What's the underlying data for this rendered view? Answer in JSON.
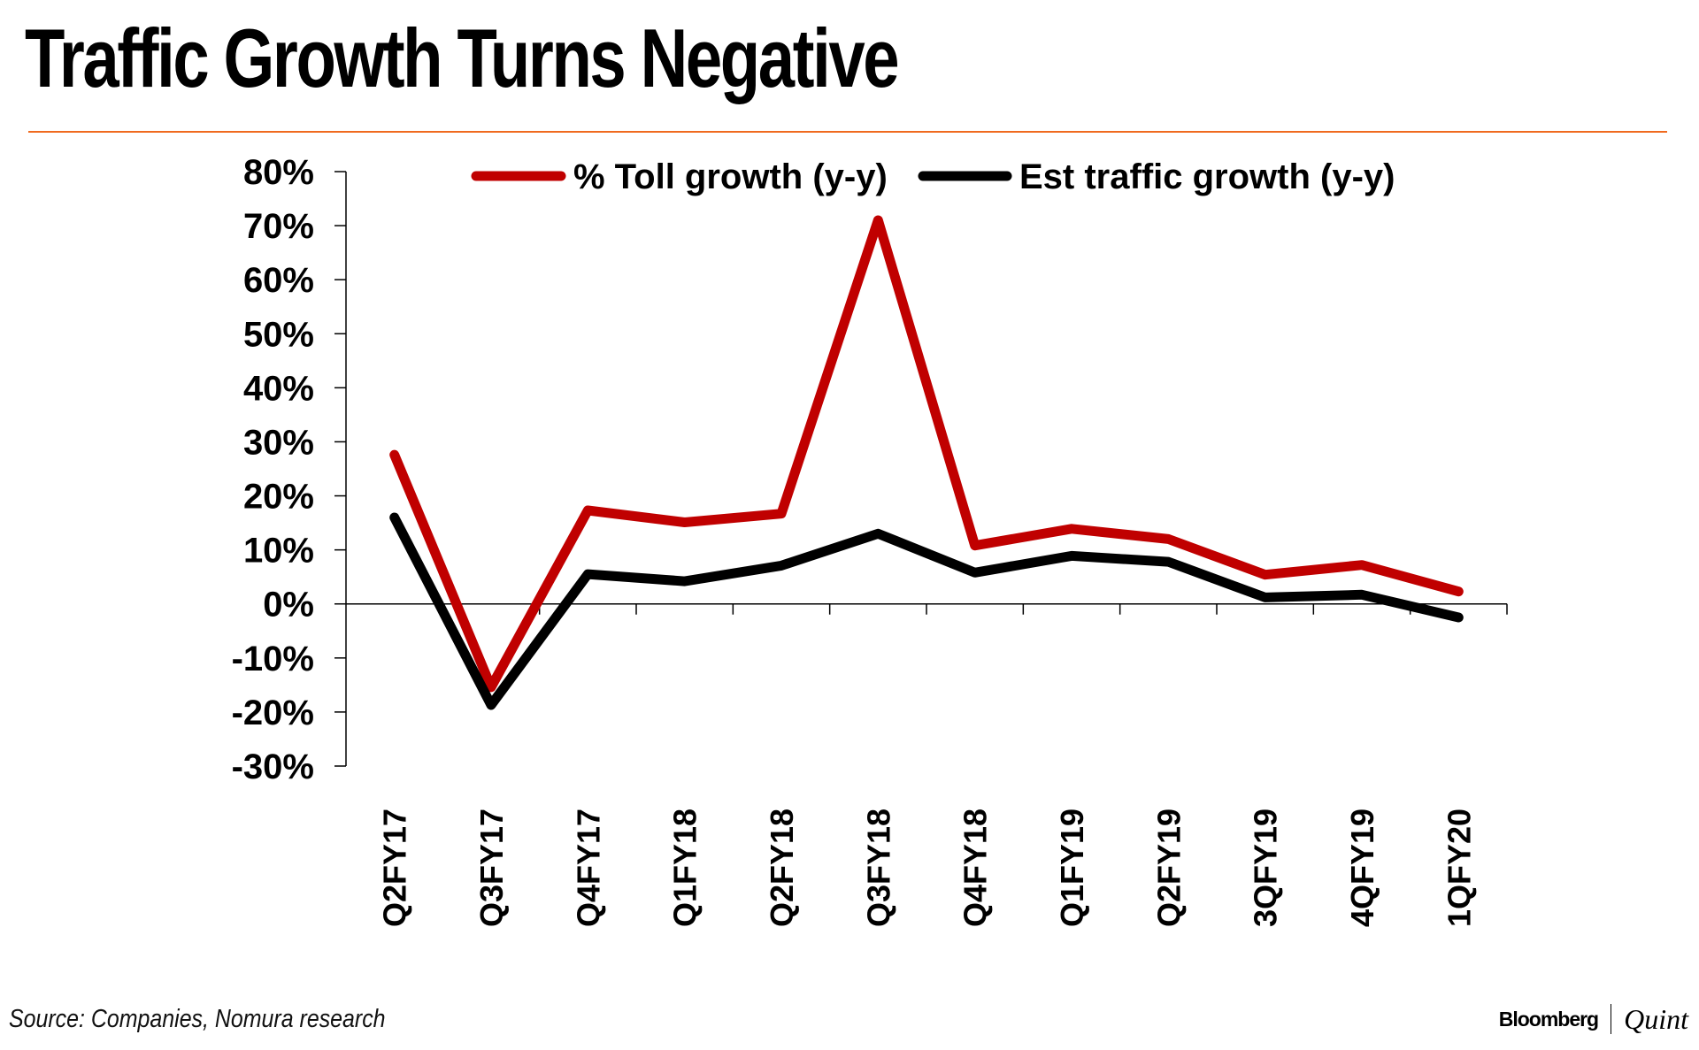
{
  "header": {
    "title": "Traffic Growth Turns Negative"
  },
  "footer": {
    "source": "Source: Companies, Nomura research",
    "brand_primary": "Bloomberg",
    "brand_secondary": "Quint"
  },
  "colors": {
    "accent_rule": "#F06A1E",
    "toll_series": "#C00000",
    "traffic_series": "#000000"
  },
  "chart_data": {
    "type": "line",
    "title": "Traffic Growth Turns Negative",
    "xlabel": "",
    "ylabel": "",
    "categories": [
      "Q2FY17",
      "Q3FY17",
      "Q4FY17",
      "Q1FY18",
      "Q2FY18",
      "Q3FY18",
      "Q4FY18",
      "Q1FY19",
      "Q2FY19",
      "3QFY19",
      "4QFY19",
      "1QFY20"
    ],
    "series": [
      {
        "name": "% Toll growth (y-y)",
        "color": "#C00000",
        "values": [
          27.6,
          -15.4,
          17.3,
          15.1,
          16.7,
          71.0,
          10.8,
          13.9,
          12.0,
          5.4,
          7.2,
          2.3
        ]
      },
      {
        "name": "Est traffic growth (y-y)",
        "color": "#000000",
        "values": [
          16.0,
          -18.7,
          5.5,
          4.2,
          7.1,
          13.0,
          5.8,
          8.9,
          7.8,
          1.2,
          1.7,
          -2.5
        ]
      }
    ],
    "ylim": [
      -30,
      80
    ],
    "yticks": [
      80,
      70,
      60,
      50,
      40,
      30,
      20,
      10,
      0,
      -10,
      -20,
      -30
    ],
    "ytick_labels": [
      "80%",
      "70%",
      "60%",
      "50%",
      "40%",
      "30%",
      "20%",
      "10%",
      "0%",
      "-10%",
      "-20%",
      "-30%"
    ],
    "grid": false,
    "legend_position": "top",
    "x_label_rotation": "vertical"
  }
}
